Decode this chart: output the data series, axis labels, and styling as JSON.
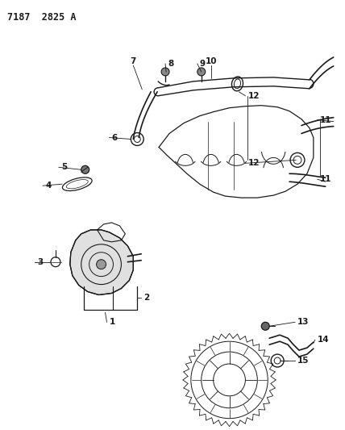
{
  "title": "7187  2825 A",
  "bg_color": "#ffffff",
  "line_color": "#1a1a1a",
  "fig_width": 4.28,
  "fig_height": 5.33,
  "dpi": 100
}
